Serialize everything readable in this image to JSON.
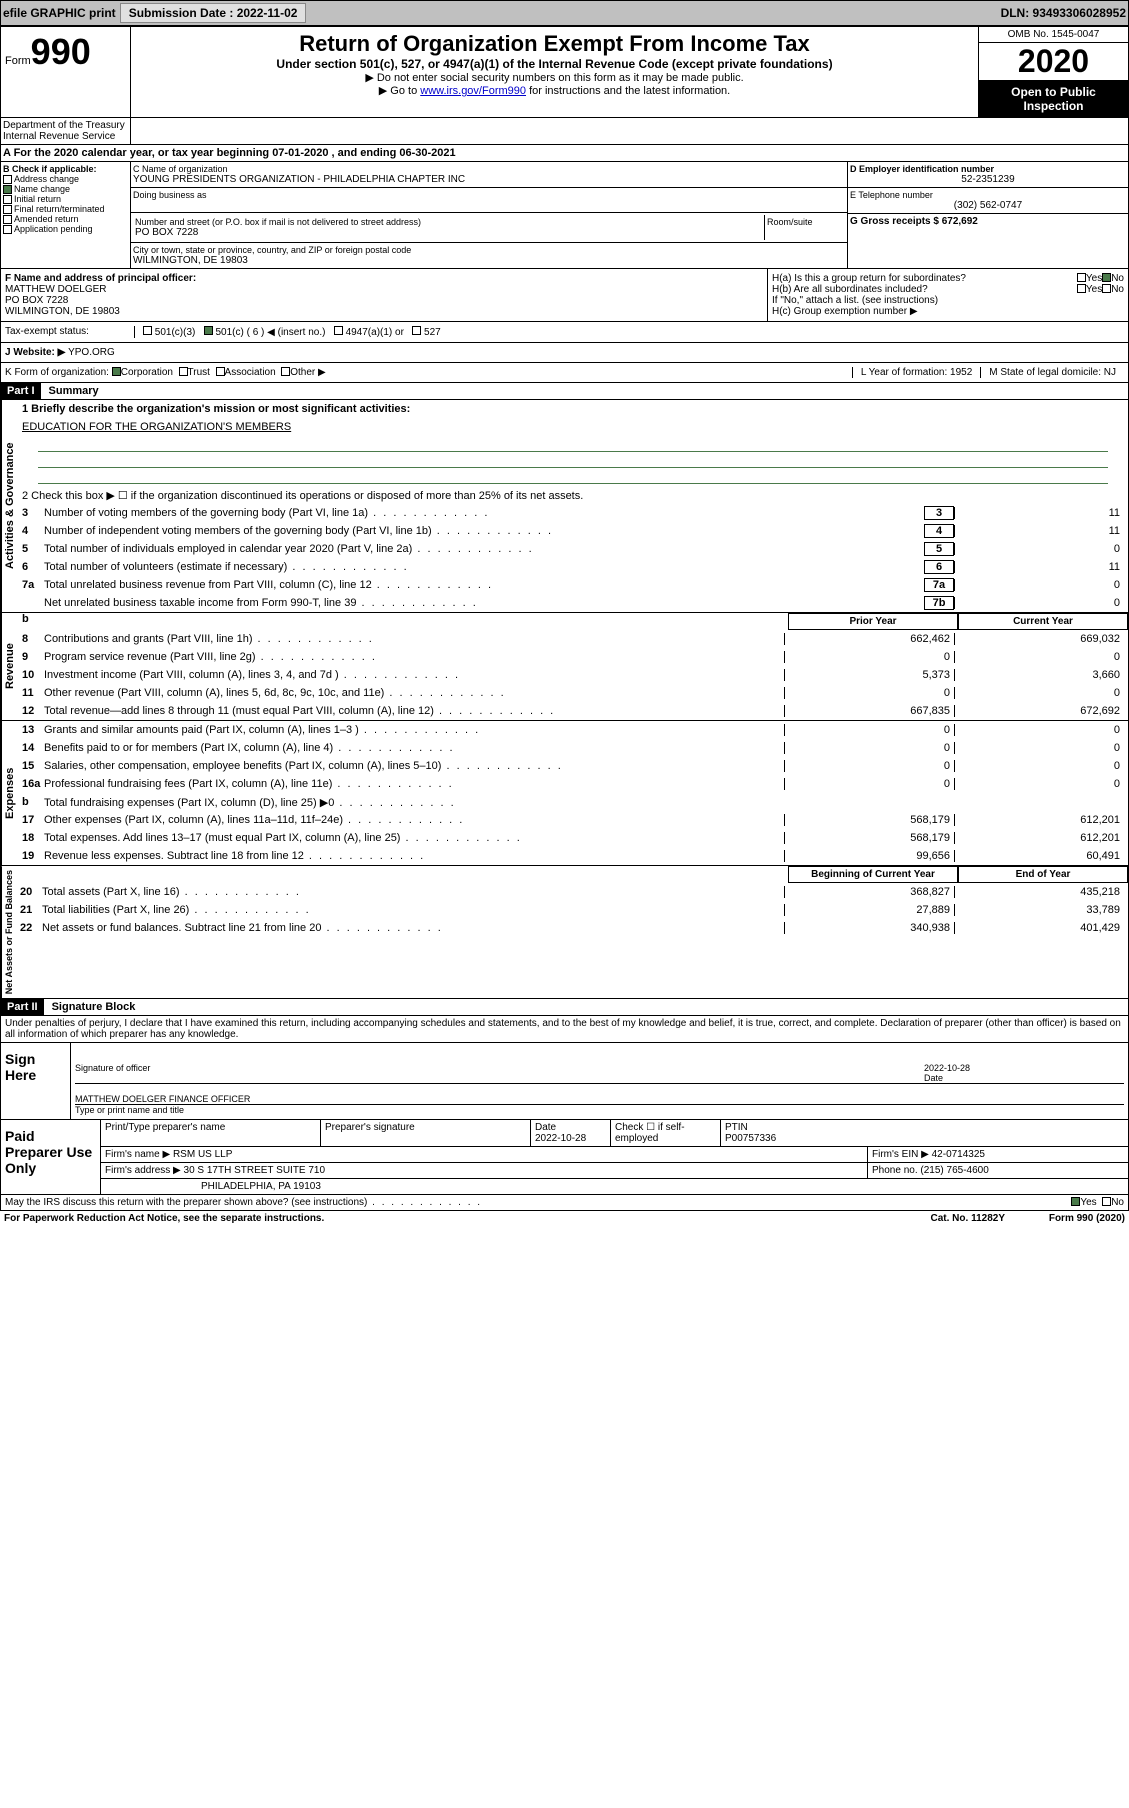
{
  "topbar": {
    "efile": "efile GRAPHIC print",
    "submission_label": "Submission Date : 2022-11-02",
    "dln": "DLN: 93493306028952"
  },
  "header": {
    "form_label": "Form",
    "form_num": "990",
    "title": "Return of Organization Exempt From Income Tax",
    "subtitle": "Under section 501(c), 527, or 4947(a)(1) of the Internal Revenue Code (except private foundations)",
    "instr1": "▶ Do not enter social security numbers on this form as it may be made public.",
    "instr2_a": "▶ Go to ",
    "instr2_link": "www.irs.gov/Form990",
    "instr2_b": " for instructions and the latest information.",
    "omb": "OMB No. 1545-0047",
    "year": "2020",
    "inspection": "Open to Public Inspection",
    "dept": "Department of the Treasury\nInternal Revenue Service"
  },
  "period": "A For the 2020 calendar year, or tax year beginning 07-01-2020    , and ending 06-30-2021",
  "section_b": {
    "label": "B Check if applicable:",
    "items": [
      "Address change",
      "Name change",
      "Initial return",
      "Final return/terminated",
      "Amended return",
      "Application pending"
    ],
    "checked_idx": 1
  },
  "section_c": {
    "name_label": "C Name of organization",
    "name": "YOUNG PRESIDENTS ORGANIZATION - PHILADELPHIA CHAPTER INC",
    "dba_label": "Doing business as",
    "addr_label": "Number and street (or P.O. box if mail is not delivered to street address)",
    "room_label": "Room/suite",
    "addr": "PO BOX 7228",
    "city_label": "City or town, state or province, country, and ZIP or foreign postal code",
    "city": "WILMINGTON, DE  19803"
  },
  "section_d": {
    "ein_label": "D Employer identification number",
    "ein": "52-2351239",
    "phone_label": "E Telephone number",
    "phone": "(302) 562-0747",
    "gross_label": "G Gross receipts $ 672,692"
  },
  "section_f": {
    "label": "F  Name and address of principal officer:",
    "name": "MATTHEW DOELGER",
    "addr1": "PO BOX 7228",
    "addr2": "WILMINGTON, DE  19803"
  },
  "section_h": {
    "ha": "H(a)  Is this a group return for subordinates?",
    "hb": "H(b)  Are all subordinates included?",
    "hb_note": "If \"No,\" attach a list. (see instructions)",
    "hc": "H(c)  Group exemption number ▶",
    "yes": "Yes",
    "no": "No"
  },
  "tax_exempt": {
    "label": "Tax-exempt status:",
    "opts": [
      "501(c)(3)",
      "501(c) ( 6 ) ◀ (insert no.)",
      "4947(a)(1) or",
      "527"
    ],
    "checked_idx": 1
  },
  "section_j": {
    "label": "J   Website: ▶",
    "value": "YPO.ORG"
  },
  "section_k": {
    "label": "K Form of organization:",
    "opts": [
      "Corporation",
      "Trust",
      "Association",
      "Other ▶"
    ],
    "checked_idx": 0,
    "year_label": "L Year of formation: 1952",
    "state_label": "M State of legal domicile: NJ"
  },
  "part1": {
    "header": "Part I",
    "title": "Summary"
  },
  "summary": {
    "q1_label": "1  Briefly describe the organization's mission or most significant activities:",
    "q1_text": "EDUCATION FOR THE ORGANIZATION'S MEMBERS",
    "q2": "2    Check this box ▶ ☐  if the organization discontinued its operations or disposed of more than 25% of its net assets.",
    "lines_boxed": [
      {
        "n": "3",
        "t": "Number of voting members of the governing body (Part VI, line 1a)",
        "box": "3",
        "v": "11"
      },
      {
        "n": "4",
        "t": "Number of independent voting members of the governing body (Part VI, line 1b)",
        "box": "4",
        "v": "11"
      },
      {
        "n": "5",
        "t": "Total number of individuals employed in calendar year 2020 (Part V, line 2a)",
        "box": "5",
        "v": "0"
      },
      {
        "n": "6",
        "t": "Total number of volunteers (estimate if necessary)",
        "box": "6",
        "v": "11"
      },
      {
        "n": "7a",
        "t": "Total unrelated business revenue from Part VIII, column (C), line 12",
        "box": "7a",
        "v": "0"
      },
      {
        "n": "",
        "t": "Net unrelated business taxable income from Form 990-T, line 39",
        "box": "7b",
        "v": "0"
      }
    ],
    "col_headers": {
      "b": "b",
      "prior": "Prior Year",
      "current": "Current Year"
    },
    "revenue": [
      {
        "n": "8",
        "t": "Contributions and grants (Part VIII, line 1h)",
        "p": "662,462",
        "c": "669,032"
      },
      {
        "n": "9",
        "t": "Program service revenue (Part VIII, line 2g)",
        "p": "0",
        "c": "0"
      },
      {
        "n": "10",
        "t": "Investment income (Part VIII, column (A), lines 3, 4, and 7d )",
        "p": "5,373",
        "c": "3,660"
      },
      {
        "n": "11",
        "t": "Other revenue (Part VIII, column (A), lines 5, 6d, 8c, 9c, 10c, and 11e)",
        "p": "0",
        "c": "0"
      },
      {
        "n": "12",
        "t": "Total revenue—add lines 8 through 11 (must equal Part VIII, column (A), line 12)",
        "p": "667,835",
        "c": "672,692"
      }
    ],
    "expenses": [
      {
        "n": "13",
        "t": "Grants and similar amounts paid (Part IX, column (A), lines 1–3 )",
        "p": "0",
        "c": "0"
      },
      {
        "n": "14",
        "t": "Benefits paid to or for members (Part IX, column (A), line 4)",
        "p": "0",
        "c": "0"
      },
      {
        "n": "15",
        "t": "Salaries, other compensation, employee benefits (Part IX, column (A), lines 5–10)",
        "p": "0",
        "c": "0"
      },
      {
        "n": "16a",
        "t": "Professional fundraising fees (Part IX, column (A), line 11e)",
        "p": "0",
        "c": "0"
      },
      {
        "n": "b",
        "t": "Total fundraising expenses (Part IX, column (D), line 25) ▶0",
        "p": "",
        "c": ""
      },
      {
        "n": "17",
        "t": "Other expenses (Part IX, column (A), lines 11a–11d, 11f–24e)",
        "p": "568,179",
        "c": "612,201"
      },
      {
        "n": "18",
        "t": "Total expenses. Add lines 13–17 (must equal Part IX, column (A), line 25)",
        "p": "568,179",
        "c": "612,201"
      },
      {
        "n": "19",
        "t": "Revenue less expenses. Subtract line 18 from line 12",
        "p": "99,656",
        "c": "60,491"
      }
    ],
    "net_headers": {
      "begin": "Beginning of Current Year",
      "end": "End of Year"
    },
    "net": [
      {
        "n": "20",
        "t": "Total assets (Part X, line 16)",
        "p": "368,827",
        "c": "435,218"
      },
      {
        "n": "21",
        "t": "Total liabilities (Part X, line 26)",
        "p": "27,889",
        "c": "33,789"
      },
      {
        "n": "22",
        "t": "Net assets or fund balances. Subtract line 21 from line 20",
        "p": "340,938",
        "c": "401,429"
      }
    ]
  },
  "vert_labels": {
    "gov": "Activities & Governance",
    "rev": "Revenue",
    "exp": "Expenses",
    "net": "Net Assets or Fund Balances"
  },
  "part2": {
    "header": "Part II",
    "title": "Signature Block"
  },
  "perjury": "Under penalties of perjury, I declare that I have examined this return, including accompanying schedules and statements, and to the best of my knowledge and belief, it is true, correct, and complete. Declaration of preparer (other than officer) is based on all information of which preparer has any knowledge.",
  "sign": {
    "label": "Sign Here",
    "sig_label": "Signature of officer",
    "date": "2022-10-28",
    "date_label": "Date",
    "name": "MATTHEW DOELGER  FINANCE OFFICER",
    "name_label": "Type or print name and title"
  },
  "preparer": {
    "label": "Paid Preparer Use Only",
    "h1": "Print/Type preparer's name",
    "h2": "Preparer's signature",
    "h3": "Date",
    "date": "2022-10-28",
    "h4": "Check ☐ if self-employed",
    "h5": "PTIN",
    "ptin": "P00757336",
    "firm_label": "Firm's name    ▶",
    "firm": "RSM US LLP",
    "ein_label": "Firm's EIN ▶",
    "ein": "42-0714325",
    "addr_label": "Firm's address ▶",
    "addr1": "30 S 17TH STREET SUITE 710",
    "addr2": "PHILADELPHIA, PA  19103",
    "phone_label": "Phone no.",
    "phone": "(215) 765-4600"
  },
  "discuss": {
    "q": "May the IRS discuss this return with the preparer shown above? (see instructions)",
    "yes": "Yes",
    "no": "No"
  },
  "footer": {
    "left": "For Paperwork Reduction Act Notice, see the separate instructions.",
    "mid": "Cat. No. 11282Y",
    "right": "Form 990 (2020)"
  }
}
